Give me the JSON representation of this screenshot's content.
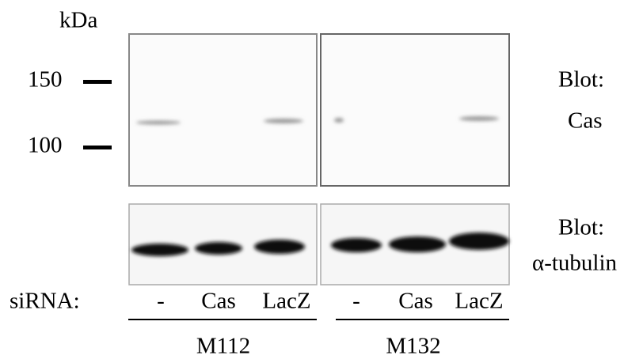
{
  "marker_unit": "kDa",
  "markers": [
    "150",
    "100"
  ],
  "blot_labels": [
    {
      "line1": "Blot:",
      "line2": "Cas"
    },
    {
      "line1": "Blot:",
      "line2": "α-tubulin"
    }
  ],
  "sirna_label": "siRNA:",
  "groups": [
    {
      "name": "M112",
      "lanes": [
        "-",
        "Cas",
        "LacZ"
      ]
    },
    {
      "name": "M132",
      "lanes": [
        "-",
        "Cas",
        "LacZ"
      ]
    }
  ]
}
